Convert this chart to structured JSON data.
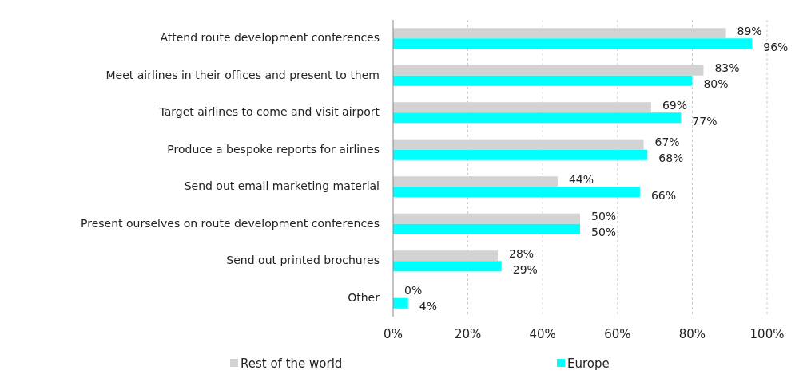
{
  "chart_data": {
    "type": "bar",
    "orientation": "horizontal",
    "categories": [
      "Attend route development conferences",
      "Meet airlines in their offices and present to them",
      "Target airlines to come and visit airport",
      "Produce a bespoke reports for airlines",
      "Send out email marketing material",
      "Present ourselves on route development conferences",
      "Send out printed brochures",
      "Other"
    ],
    "series": [
      {
        "name": "Rest of the world",
        "color": "#d3d3d3",
        "values": [
          89,
          83,
          69,
          67,
          44,
          50,
          28,
          0
        ],
        "value_labels": [
          "89%",
          "83%",
          "69%",
          "67%",
          "44%",
          "50%",
          "28%",
          "0%"
        ]
      },
      {
        "name": "Europe",
        "color": "#00ffff",
        "values": [
          96,
          80,
          77,
          68,
          66,
          50,
          29,
          4
        ],
        "value_labels": [
          "96%",
          "80%",
          "77%",
          "68%",
          "66%",
          "50%",
          "29%",
          "4%"
        ]
      }
    ],
    "xlim": [
      0,
      100
    ],
    "xticks": [
      {
        "value": 0,
        "label": "0%"
      },
      {
        "value": 20,
        "label": "20%"
      },
      {
        "value": 40,
        "label": "40%"
      },
      {
        "value": 60,
        "label": "60%"
      },
      {
        "value": 80,
        "label": "80%"
      },
      {
        "value": 100,
        "label": "100%"
      }
    ],
    "grid": "x",
    "legend": "bottom"
  }
}
